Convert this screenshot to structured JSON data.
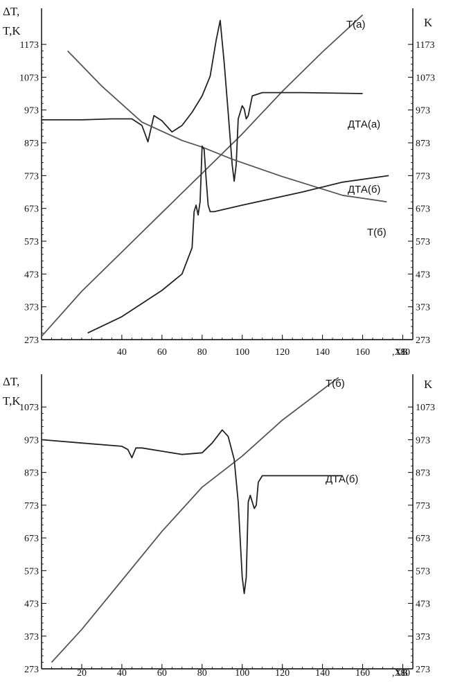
{
  "chart_data": [
    {
      "type": "line",
      "panel": "top",
      "y_left_label": [
        "ΔT,",
        "T,K"
      ],
      "y_right_label": "K",
      "x_label": ",ХВ",
      "xlim": [
        0,
        185
      ],
      "ylim": [
        273,
        1283
      ],
      "x_ticks": [
        "40",
        "60",
        "80",
        "100",
        "120",
        "140",
        "160",
        "180"
      ],
      "x_tick_values": [
        40,
        60,
        80,
        100,
        120,
        140,
        160,
        180
      ],
      "y_ticks": [
        "273",
        "373",
        "473",
        "573",
        "673",
        "773",
        "873",
        "973",
        "1073",
        "1173"
      ],
      "y_tick_values": [
        273,
        373,
        473,
        573,
        673,
        773,
        873,
        973,
        1073,
        1173
      ],
      "grid": false,
      "series": [
        {
          "name": "T(а)",
          "color": "#555555",
          "x": [
            0,
            20,
            40,
            60,
            80,
            100,
            120,
            140,
            160
          ],
          "y": [
            283,
            420,
            540,
            660,
            780,
            900,
            1030,
            1150,
            1263
          ]
        },
        {
          "name": "ДТА(а)",
          "color": "#222222",
          "x": [
            0,
            20,
            35,
            45,
            50,
            53,
            56,
            60,
            65,
            70,
            75,
            80,
            84,
            87,
            89,
            91,
            93,
            95,
            96,
            97,
            98,
            100,
            101,
            102,
            103,
            105,
            110,
            130,
            160
          ],
          "y": [
            943,
            943,
            946,
            946,
            926,
            876,
            956,
            940,
            906,
            926,
            966,
            1016,
            1076,
            1186,
            1246,
            1116,
            966,
            806,
            756,
            806,
            946,
            986,
            976,
            946,
            956,
            1016,
            1026,
            1026,
            1023
          ]
        },
        {
          "name": "T(б)",
          "color": "#555555",
          "x": [
            13,
            30,
            50,
            70,
            80,
            95,
            120,
            150,
            172
          ],
          "y": [
            1153,
            1046,
            936,
            880,
            860,
            823,
            770,
            713,
            693
          ]
        },
        {
          "name": "ДТА(б)",
          "color": "#222222",
          "x": [
            23,
            40,
            60,
            70,
            75,
            76,
            77,
            78,
            79,
            80,
            81,
            82,
            83,
            84,
            86,
            100,
            130,
            150,
            173
          ],
          "y": [
            293,
            343,
            423,
            473,
            553,
            663,
            683,
            653,
            693,
            863,
            853,
            763,
            683,
            663,
            663,
            683,
            723,
            753,
            773
          ]
        }
      ],
      "annotations": [
        "T(а)",
        "ДТА(а)",
        "ДТА(б)",
        "T(б)"
      ]
    },
    {
      "type": "line",
      "panel": "bottom",
      "y_left_label": [
        "ΔT,",
        "T,K"
      ],
      "y_right_label": "K",
      "x_label": ",ХВ",
      "xlim": [
        0,
        185
      ],
      "ylim": [
        273,
        1173
      ],
      "x_ticks": [
        "20",
        "40",
        "60",
        "80",
        "100",
        "120",
        "140",
        "160",
        "180"
      ],
      "x_tick_values": [
        20,
        40,
        60,
        80,
        100,
        120,
        140,
        160,
        180
      ],
      "y_ticks": [
        "273",
        "373",
        "473",
        "573",
        "673",
        "773",
        "873",
        "973",
        "1073"
      ],
      "y_tick_values": [
        273,
        373,
        473,
        573,
        673,
        773,
        873,
        973,
        1073
      ],
      "grid": false,
      "series": [
        {
          "name": "T(б)",
          "color": "#555555",
          "x": [
            5,
            20,
            40,
            60,
            80,
            100,
            120,
            148
          ],
          "y": [
            293,
            393,
            543,
            693,
            828,
            923,
            1033,
            1163
          ]
        },
        {
          "name": "ДТА(б)",
          "color": "#222222",
          "x": [
            0,
            20,
            40,
            43,
            45,
            47,
            50,
            60,
            70,
            80,
            85,
            90,
            93,
            96,
            98,
            100,
            101,
            102,
            103,
            104,
            105,
            106,
            107,
            108,
            110,
            120,
            140,
            150
          ],
          "y": [
            973,
            963,
            953,
            943,
            918,
            948,
            948,
            938,
            928,
            933,
            963,
            1003,
            983,
            913,
            783,
            553,
            503,
            553,
            783,
            803,
            783,
            763,
            773,
            843,
            863,
            863,
            863,
            863
          ]
        }
      ],
      "annotations": [
        "T(б)",
        "ДТА(б)"
      ]
    }
  ]
}
